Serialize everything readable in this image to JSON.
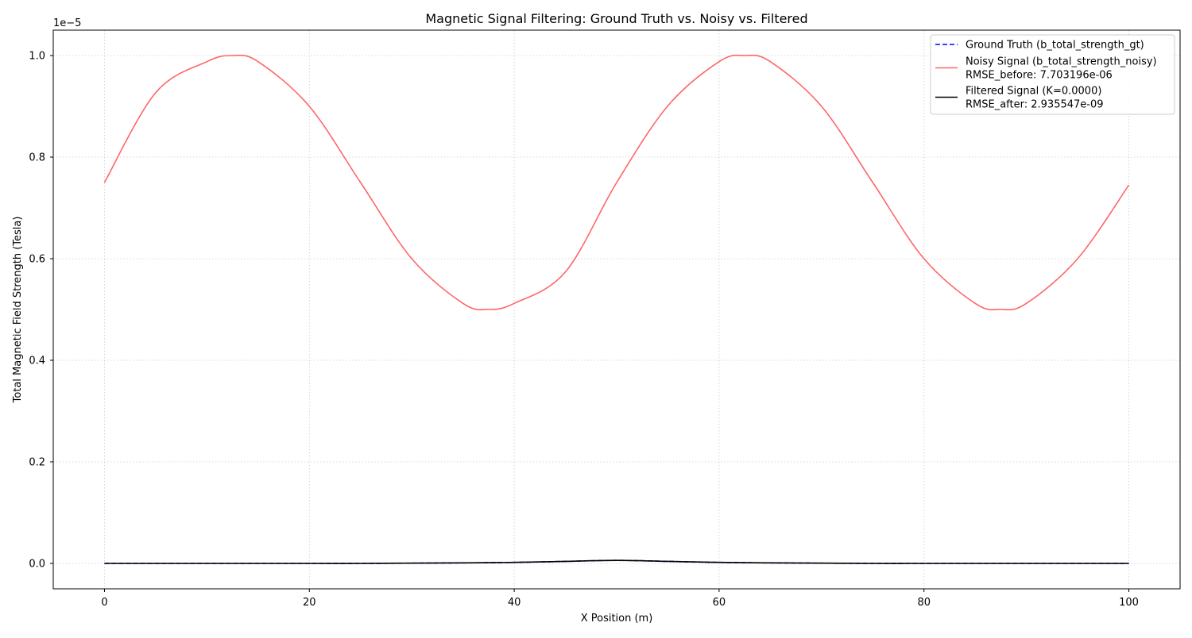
{
  "chart_data": {
    "type": "line",
    "title": "Magnetic Signal Filtering: Ground Truth vs. Noisy vs. Filtered",
    "xlabel": "X Position (m)",
    "ylabel": "Total Magnetic Field Strength (Tesla)",
    "y_offset_label": "1e−5",
    "xlim": [
      -5,
      105
    ],
    "ylim": [
      -0.05,
      1.05
    ],
    "x_ticks": [
      0,
      20,
      40,
      60,
      80,
      100
    ],
    "x_tick_labels": [
      "0",
      "20",
      "40",
      "60",
      "80",
      "100"
    ],
    "y_ticks": [
      0.0,
      0.2,
      0.4,
      0.6,
      0.8,
      1.0
    ],
    "y_tick_labels": [
      "0.0",
      "0.2",
      "0.4",
      "0.6",
      "0.8",
      "1.0"
    ],
    "grid": true,
    "legend_position": "top-right",
    "x": [
      0,
      5,
      10,
      12.5,
      15,
      20,
      25,
      30,
      35,
      37.5,
      40,
      45,
      50,
      55,
      60,
      62.5,
      65,
      70,
      75,
      80,
      85,
      87.5,
      90,
      95,
      100
    ],
    "series": [
      {
        "name": "Ground Truth (b_total_strength_gt)",
        "color": "#0000ff",
        "style": "dashed",
        "values": [
          0.0,
          0.0,
          0.0,
          0.0,
          0.0,
          0.0,
          0.0,
          0.0005,
          0.001,
          0.0015,
          0.002,
          0.004,
          0.006,
          0.004,
          0.002,
          0.0015,
          0.001,
          0.0005,
          0.0,
          0.0,
          0.0,
          0.0,
          0.0,
          0.0,
          0.0
        ]
      },
      {
        "name": "Noisy Signal (b_total_strength_noisy)",
        "legend_extra": "RMSE_before: 7.703196e-06",
        "color": "#ff6666",
        "style": "solid",
        "values": [
          0.75,
          0.927,
          0.988,
          1.0,
          0.988,
          0.9,
          0.75,
          0.6,
          0.512,
          0.5,
          0.512,
          0.574,
          0.75,
          0.901,
          0.988,
          1.0,
          0.988,
          0.9,
          0.75,
          0.6,
          0.512,
          0.5,
          0.512,
          0.6,
          0.745
        ]
      },
      {
        "name": "Filtered Signal (K=0.0000)",
        "legend_extra": "RMSE_after: 2.935547e-09",
        "color": "#000000",
        "style": "solid",
        "values": [
          0.0,
          0.0,
          0.0,
          0.0,
          0.0,
          0.0,
          0.0,
          0.0005,
          0.001,
          0.0015,
          0.002,
          0.004,
          0.006,
          0.004,
          0.002,
          0.0015,
          0.001,
          0.0005,
          0.0,
          0.0,
          0.0,
          0.0,
          0.0,
          0.0,
          0.0
        ]
      }
    ]
  }
}
